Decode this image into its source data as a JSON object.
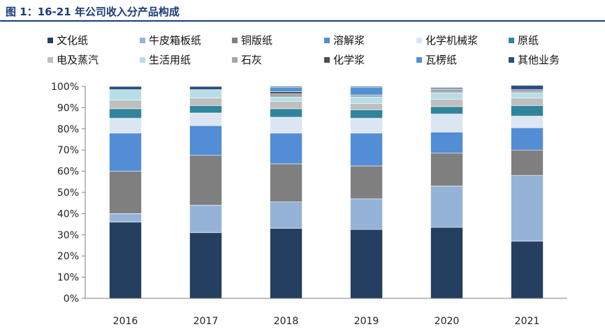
{
  "header": {
    "title": "图 1：16-21 年公司收入分产品构成"
  },
  "chart_data": {
    "type": "bar",
    "stacked": true,
    "categories": [
      "2016",
      "2017",
      "2018",
      "2019",
      "2020",
      "2021"
    ],
    "ylim": [
      0,
      100
    ],
    "yticks": [
      "0%",
      "10%",
      "20%",
      "30%",
      "40%",
      "50%",
      "60%",
      "70%",
      "80%",
      "90%",
      "100%"
    ],
    "legend_position": "top",
    "series": [
      {
        "name": "文化纸",
        "color": "#243f60",
        "values": [
          36.0,
          31.0,
          33.0,
          32.5,
          33.5,
          27.0
        ]
      },
      {
        "name": "牛皮箱板纸",
        "color": "#95b3d7",
        "values": [
          4.0,
          13.0,
          12.5,
          14.5,
          19.5,
          31.0
        ]
      },
      {
        "name": "铜版纸",
        "color": "#7f7f7f",
        "values": [
          20.0,
          23.5,
          18.0,
          15.5,
          15.5,
          12.0
        ]
      },
      {
        "name": "溶解浆",
        "color": "#538dd5",
        "values": [
          18.0,
          14.0,
          14.5,
          15.5,
          10.0,
          10.5
        ]
      },
      {
        "name": "化学机械浆",
        "color": "#dce6f2",
        "values": [
          7.0,
          6.0,
          7.5,
          7.0,
          8.5,
          5.5
        ]
      },
      {
        "name": "原纸",
        "color": "#31849b",
        "values": [
          4.5,
          3.5,
          4.0,
          4.0,
          3.5,
          5.0
        ]
      },
      {
        "name": "电及蒸汽",
        "color": "#bfbfbf",
        "values": [
          4.0,
          3.5,
          3.5,
          3.0,
          3.5,
          3.5
        ]
      },
      {
        "name": "生活用纸",
        "color": "#b7dee8",
        "values": [
          5.0,
          4.0,
          2.0,
          3.0,
          3.0,
          2.5
        ]
      },
      {
        "name": "石灰",
        "color": "#a6a6a6",
        "values": [
          0.0,
          0.0,
          1.5,
          1.0,
          1.0,
          0.5
        ]
      },
      {
        "name": "化学浆",
        "color": "#4d4d4d",
        "values": [
          0.0,
          0.0,
          1.0,
          0.0,
          0.5,
          0.5
        ]
      },
      {
        "name": "瓦楞纸",
        "color": "#4f91d5",
        "values": [
          0.0,
          0.0,
          2.0,
          3.5,
          0.5,
          0.5
        ]
      },
      {
        "name": "其他业务",
        "color": "#2e4d7c",
        "values": [
          1.5,
          1.5,
          0.5,
          0.5,
          0.5,
          2.0
        ]
      }
    ]
  }
}
